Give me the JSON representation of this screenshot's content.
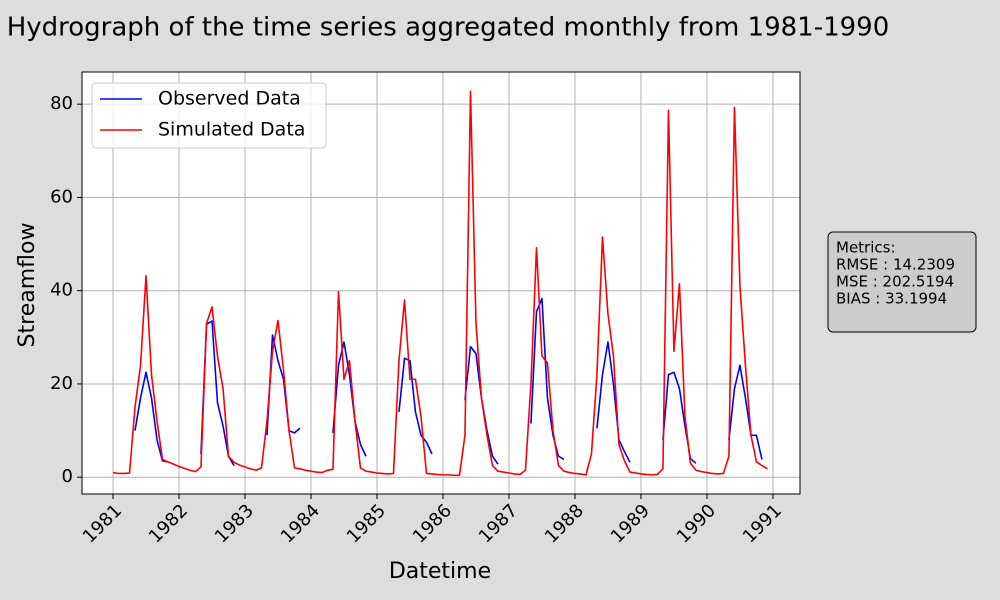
{
  "chart_data": {
    "type": "line",
    "title": "Hydrograph of the time series aggregated monthly from 1981-1990",
    "x_label": "Datetime",
    "y_label": "Streamflow",
    "x": [
      1981,
      1981.083,
      1981.167,
      1981.25,
      1981.333,
      1981.417,
      1981.5,
      1981.583,
      1981.667,
      1981.75,
      1981.833,
      1981.917,
      1982,
      1982.083,
      1982.167,
      1982.25,
      1982.333,
      1982.417,
      1982.5,
      1982.583,
      1982.667,
      1982.75,
      1982.833,
      1982.917,
      1983,
      1983.083,
      1983.167,
      1983.25,
      1983.333,
      1983.417,
      1983.5,
      1983.583,
      1983.667,
      1983.75,
      1983.833,
      1983.917,
      1984,
      1984.083,
      1984.167,
      1984.25,
      1984.333,
      1984.417,
      1984.5,
      1984.583,
      1984.667,
      1984.75,
      1984.833,
      1984.917,
      1985,
      1985.083,
      1985.167,
      1985.25,
      1985.333,
      1985.417,
      1985.5,
      1985.583,
      1985.667,
      1985.75,
      1985.833,
      1985.917,
      1986,
      1986.083,
      1986.167,
      1986.25,
      1986.333,
      1986.417,
      1986.5,
      1986.583,
      1986.667,
      1986.75,
      1986.833,
      1986.917,
      1987,
      1987.083,
      1987.167,
      1987.25,
      1987.333,
      1987.417,
      1987.5,
      1987.583,
      1987.667,
      1987.75,
      1987.833,
      1987.917,
      1988,
      1988.083,
      1988.167,
      1988.25,
      1988.333,
      1988.417,
      1988.5,
      1988.583,
      1988.667,
      1988.75,
      1988.833,
      1988.917,
      1989,
      1989.083,
      1989.167,
      1989.25,
      1989.333,
      1989.417,
      1989.5,
      1989.583,
      1989.667,
      1989.75,
      1989.833,
      1989.917,
      1990,
      1990.083,
      1990.167,
      1990.25,
      1990.333,
      1990.417,
      1990.5,
      1990.583,
      1990.667,
      1990.75,
      1990.833,
      1990.917
    ],
    "series": [
      {
        "name": "Observed Data",
        "color": "#0000ff",
        "values": [
          null,
          null,
          null,
          null,
          10,
          17,
          22.5,
          17,
          8,
          3.5,
          3.3,
          null,
          null,
          null,
          null,
          null,
          5,
          32.8,
          33.5,
          16,
          11,
          4.5,
          2.5,
          null,
          null,
          null,
          null,
          null,
          9,
          30.5,
          25,
          21,
          10,
          9.5,
          10.5,
          null,
          null,
          null,
          null,
          null,
          9.5,
          24,
          29,
          22,
          12,
          7,
          4.5,
          null,
          null,
          null,
          null,
          null,
          14,
          25.5,
          25,
          14,
          9,
          7.5,
          5,
          null,
          null,
          null,
          null,
          null,
          16.5,
          28,
          26.5,
          17,
          10,
          4.5,
          2.8,
          null,
          null,
          null,
          null,
          null,
          11.5,
          35.5,
          38.3,
          17,
          9,
          4.5,
          3.8,
          null,
          null,
          null,
          null,
          null,
          10.5,
          22,
          29,
          20,
          8,
          5.5,
          3.2,
          null,
          null,
          null,
          null,
          null,
          8,
          22,
          22.5,
          19,
          11,
          4,
          3,
          null,
          null,
          null,
          null,
          null,
          8,
          19,
          24,
          17,
          9,
          9,
          3.8,
          null
        ]
      },
      {
        "name": "Simulated Data",
        "color": "#ff0000",
        "values": [
          1,
          0.8,
          0.8,
          0.9,
          15,
          24,
          43.2,
          22,
          12,
          3.8,
          3.3,
          2.8,
          2.3,
          1.9,
          1.5,
          1.2,
          2.2,
          33,
          36.5,
          26,
          19,
          4.5,
          3.2,
          2.6,
          2.2,
          1.8,
          1.5,
          2,
          12,
          27,
          33.6,
          23,
          10,
          2,
          1.8,
          1.5,
          1.3,
          1.1,
          1,
          1.5,
          1.7,
          39.8,
          21,
          25,
          12,
          2,
          1.3,
          1.1,
          0.9,
          0.8,
          0.7,
          0.8,
          25,
          38,
          21,
          21,
          13,
          0.8,
          0.7,
          0.6,
          0.5,
          0.5,
          0.4,
          0.4,
          9,
          82.8,
          33,
          17,
          9,
          2.5,
          1.3,
          1.1,
          0.9,
          0.7,
          0.6,
          1.5,
          20,
          49.2,
          26,
          24.5,
          10,
          2.5,
          1.3,
          1,
          0.8,
          0.7,
          0.5,
          5,
          22,
          51.5,
          35,
          26,
          7,
          3.5,
          1.1,
          0.9,
          0.7,
          0.6,
          0.5,
          0.6,
          1.8,
          78.7,
          27,
          41.5,
          13,
          3,
          1.5,
          1.2,
          1,
          0.8,
          0.7,
          0.8,
          4.5,
          79.3,
          41,
          24,
          9,
          3.3,
          2.5,
          1.8
        ]
      }
    ],
    "xlim": [
      1980.53,
      1991.41
    ],
    "xticks": [
      1981,
      1982,
      1983,
      1984,
      1985,
      1986,
      1987,
      1988,
      1989,
      1990,
      1991
    ],
    "ylim": [
      -3.6,
      86.9
    ],
    "yticks": [
      0,
      20,
      40,
      60,
      80
    ],
    "grid": true,
    "legend": "upper left",
    "metrics": {
      "title": "Metrics:",
      "lines": [
        "RMSE : 14.2309",
        "MSE : 202.5194",
        "BIAS : 33.1994"
      ]
    }
  }
}
